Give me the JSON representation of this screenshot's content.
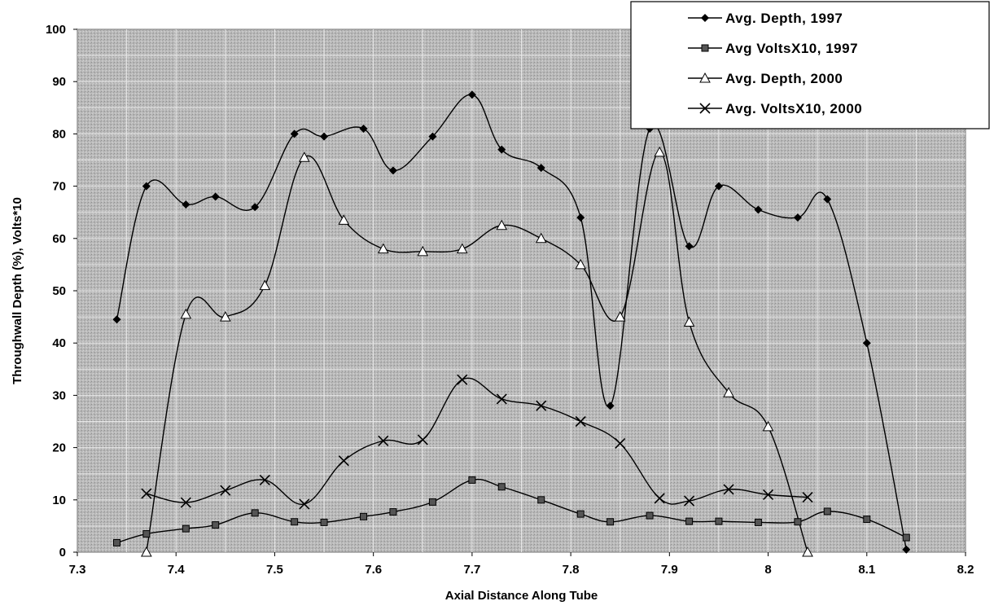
{
  "chart_data": {
    "type": "line",
    "title": "",
    "xlabel": "Axial Distance Along Tube",
    "ylabel": "Throughwall Depth (%), Volts*10",
    "xlim": [
      7.3,
      8.2
    ],
    "ylim": [
      0,
      100
    ],
    "xticks": [
      "7.3",
      "7.4",
      "7.5",
      "7.6",
      "7.7",
      "7.8",
      "7.9",
      "8",
      "8.1",
      "8.2"
    ],
    "yticks": [
      "0",
      "10",
      "20",
      "30",
      "40",
      "50",
      "60",
      "70",
      "80",
      "90",
      "100"
    ],
    "grid": true,
    "legend_position": "top-right",
    "series": [
      {
        "name": "Avg. Depth, 1997",
        "marker": "diamond",
        "x": [
          7.34,
          7.37,
          7.41,
          7.44,
          7.48,
          7.52,
          7.55,
          7.59,
          7.62,
          7.66,
          7.7,
          7.73,
          7.77,
          7.81,
          7.84,
          7.88,
          7.92,
          7.95,
          7.99,
          8.03,
          8.06,
          8.1,
          8.14
        ],
        "y": [
          44.5,
          70,
          66.5,
          68,
          66,
          80,
          79.5,
          81,
          73,
          79.5,
          87.5,
          77,
          73.5,
          64,
          28,
          81,
          58.5,
          70,
          65.5,
          64,
          67.5,
          40,
          0.5
        ]
      },
      {
        "name": "Avg VoltsX10, 1997",
        "marker": "square",
        "x": [
          7.34,
          7.37,
          7.41,
          7.44,
          7.48,
          7.52,
          7.55,
          7.59,
          7.62,
          7.66,
          7.7,
          7.73,
          7.77,
          7.81,
          7.84,
          7.88,
          7.92,
          7.95,
          7.99,
          8.03,
          8.06,
          8.1,
          8.14
        ],
        "y": [
          1.8,
          3.5,
          4.5,
          5.2,
          7.5,
          5.8,
          5.7,
          6.8,
          7.7,
          9.6,
          13.8,
          12.5,
          10,
          7.3,
          5.8,
          7,
          5.9,
          5.9,
          5.7,
          5.8,
          7.8,
          6.3,
          2.8
        ]
      },
      {
        "name": "Avg. Depth, 2000",
        "marker": "triangle",
        "x": [
          7.37,
          7.41,
          7.45,
          7.49,
          7.53,
          7.57,
          7.61,
          7.65,
          7.69,
          7.73,
          7.77,
          7.81,
          7.85,
          7.89,
          7.92,
          7.96,
          8,
          8.04
        ],
        "y": [
          0,
          45.5,
          45,
          51,
          75.5,
          63.5,
          58,
          57.5,
          58,
          62.5,
          60,
          55,
          45,
          76.5,
          44,
          30.5,
          24,
          0
        ]
      },
      {
        "name": "Avg. VoltsX10, 2000",
        "marker": "x",
        "x": [
          7.37,
          7.41,
          7.45,
          7.49,
          7.53,
          7.57,
          7.61,
          7.65,
          7.69,
          7.73,
          7.77,
          7.81,
          7.85,
          7.89,
          7.92,
          7.96,
          8,
          8.04
        ],
        "y": [
          11.2,
          9.5,
          11.8,
          13.8,
          9.2,
          17.5,
          21.3,
          21.5,
          33,
          29.3,
          28,
          25,
          20.8,
          10.3,
          9.8,
          12,
          11,
          10.5
        ]
      }
    ]
  }
}
